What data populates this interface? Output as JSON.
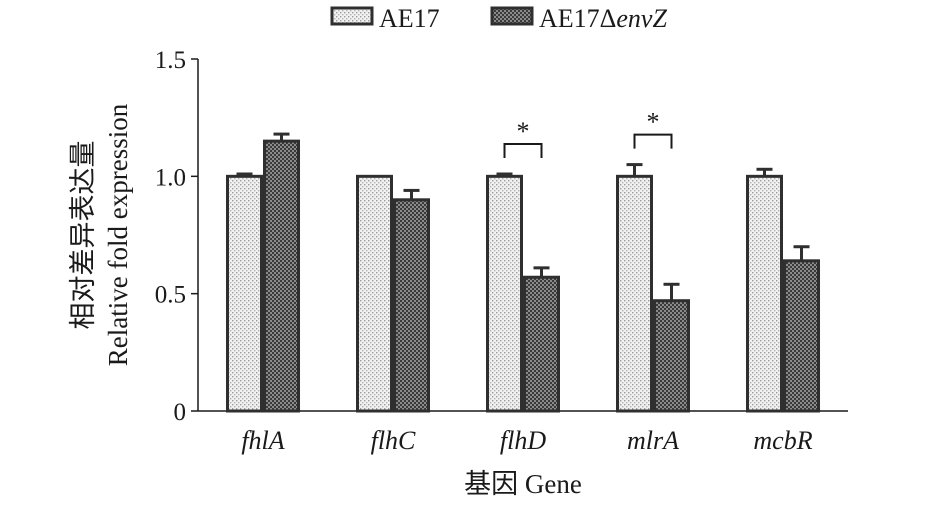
{
  "chart_data": {
    "type": "bar",
    "xlabel": "基因 Gene",
    "ylabel_cn": "相对差异表达量",
    "ylabel_en": "Relative fold expression",
    "ylim": [
      0,
      1.5
    ],
    "yticks": [
      {
        "value": 0,
        "label": "0"
      },
      {
        "value": 0.5,
        "label": "0.5"
      },
      {
        "value": 1.0,
        "label": "1.0"
      },
      {
        "value": 1.5,
        "label": "1.5"
      }
    ],
    "categories": [
      "fhlA",
      "flhC",
      "flhD",
      "mlrA",
      "mcbR"
    ],
    "series": [
      {
        "name": "AE17",
        "legend_prefix": "AE17",
        "legend_italic": "",
        "pattern": "dots",
        "color": "#d9d9d9",
        "values": [
          1.0,
          1.0,
          1.0,
          1.0,
          1.0
        ],
        "errors": [
          0.01,
          0.0,
          0.01,
          0.05,
          0.03
        ]
      },
      {
        "name": "AE17ΔenvZ",
        "legend_prefix": "AE17Δ",
        "legend_italic": "envZ",
        "pattern": "checker",
        "color": "#555555",
        "values": [
          1.15,
          0.9,
          0.57,
          0.47,
          0.64
        ],
        "errors": [
          0.03,
          0.04,
          0.04,
          0.07,
          0.06
        ]
      }
    ],
    "significance": [
      {
        "category": "flhD",
        "label": "*"
      },
      {
        "category": "mlrA",
        "label": "*"
      }
    ],
    "legend_position": "top"
  }
}
